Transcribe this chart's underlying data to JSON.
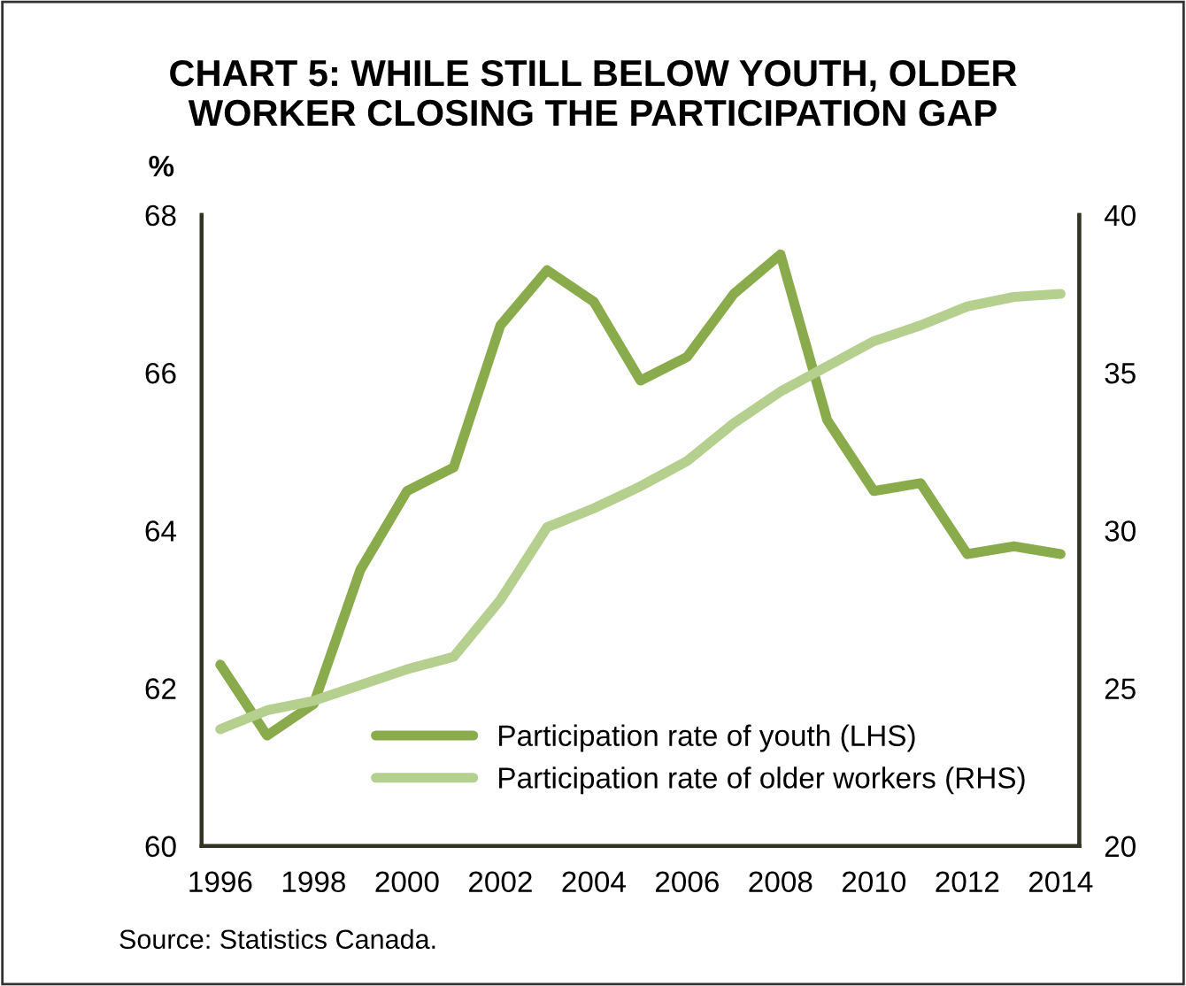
{
  "chart_data": {
    "type": "line",
    "title": "CHART 5: WHILE STILL BELOW YOUTH, OLDER\nWORKER CLOSING THE PARTICIPATION GAP",
    "ylabel": "%",
    "x": [
      1996,
      1997,
      1998,
      1999,
      2000,
      2001,
      2002,
      2003,
      2004,
      2005,
      2006,
      2007,
      2008,
      2009,
      2010,
      2011,
      2012,
      2013,
      2014
    ],
    "series": [
      {
        "name": "Participation rate of youth (LHS)",
        "color": "#8aab4b",
        "values": [
          62.3,
          61.4,
          61.8,
          63.5,
          64.5,
          64.8,
          66.6,
          67.3,
          66.9,
          65.9,
          66.2,
          67.0,
          67.5,
          65.4,
          64.5,
          64.6,
          63.7,
          63.8,
          63.7
        ]
      },
      {
        "name": "Participation rate of older workers (RHS)",
        "color": "#b5cf8f",
        "axis": "y2",
        "values": [
          23.7,
          24.3,
          24.6,
          25.1,
          25.6,
          26.0,
          27.8,
          30.1,
          30.7,
          31.4,
          32.2,
          33.4,
          34.4,
          35.2,
          36.0,
          36.5,
          37.1,
          37.4,
          37.5
        ]
      }
    ],
    "xlim": [
      1995.6,
      2014.4
    ],
    "xticks": [
      1996,
      1998,
      2000,
      2002,
      2004,
      2006,
      2008,
      2010,
      2012,
      2014
    ],
    "ylim": [
      60,
      68
    ],
    "yticks": [
      60,
      62,
      64,
      66,
      68
    ],
    "y2lim": [
      20,
      40
    ],
    "y2ticks": [
      20,
      25,
      30,
      35,
      40
    ],
    "legend": "bottom right",
    "grid": false,
    "marker": "none",
    "line_style": "solid",
    "annotations": [
      "Source: Statistics Canada."
    ]
  }
}
